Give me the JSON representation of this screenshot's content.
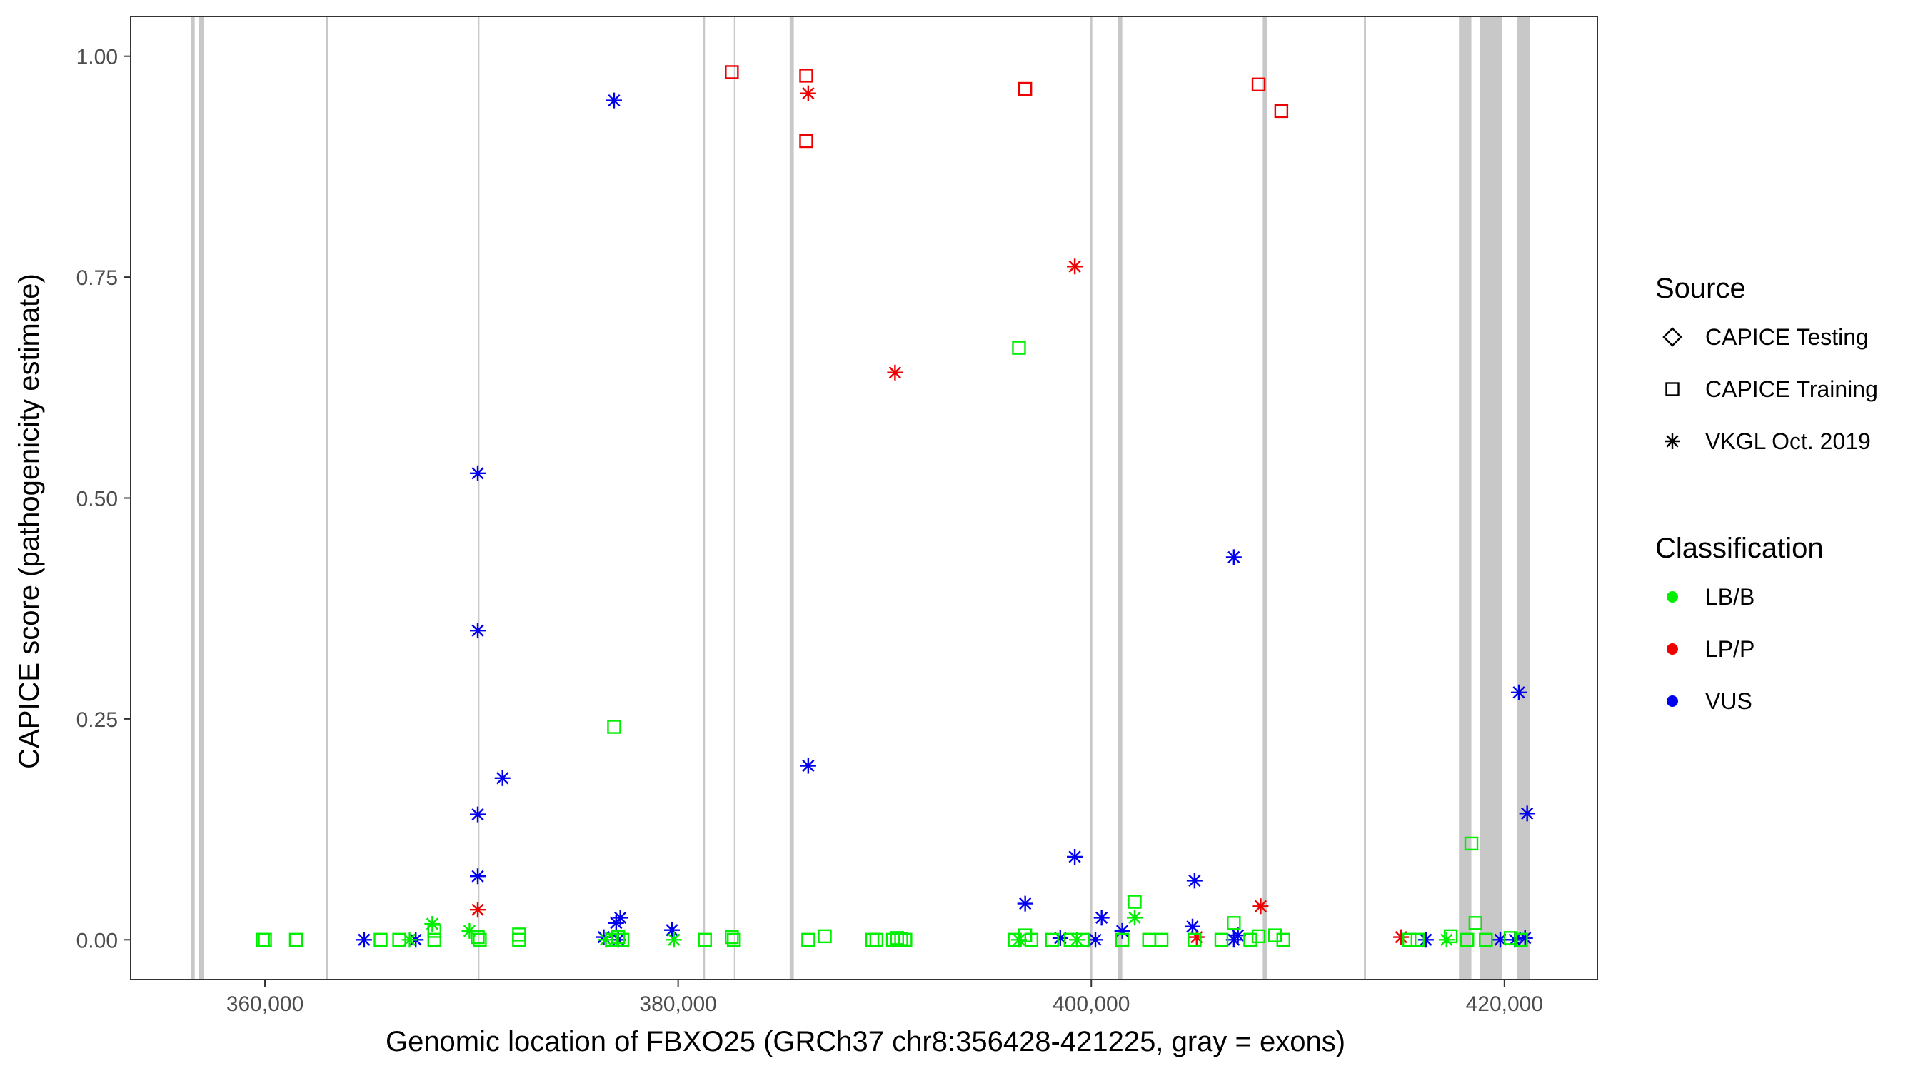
{
  "chart_data": {
    "type": "scatter",
    "xlabel": "Genomic location of FBXO25 (GRCh37 chr8:356428-421225, gray = exons)",
    "ylabel": "CAPICE score (pathogenicity estimate)",
    "xlim": [
      353500,
      424500
    ],
    "ylim": [
      -0.045,
      1.045
    ],
    "x_ticks": [
      360000,
      380000,
      400000,
      420000
    ],
    "x_tick_labels": [
      "360,000",
      "380,000",
      "400,000",
      "420,000"
    ],
    "y_ticks": [
      0,
      0.25,
      0.5,
      0.75,
      1.0
    ],
    "y_tick_labels": [
      "0.00",
      "0.25",
      "0.50",
      "0.75",
      "1.00"
    ],
    "grid": false,
    "exons": [
      [
        356420,
        356600
      ],
      [
        356800,
        357050
      ],
      [
        362950,
        363050
      ],
      [
        370300,
        370380
      ],
      [
        381200,
        381300
      ],
      [
        382700,
        382760
      ],
      [
        385400,
        385600
      ],
      [
        399950,
        400050
      ],
      [
        401300,
        401500
      ],
      [
        408300,
        408500
      ],
      [
        413200,
        413300
      ],
      [
        417800,
        418400
      ],
      [
        418800,
        419900
      ],
      [
        420600,
        421220
      ]
    ],
    "legend_shape": {
      "title": "Source",
      "entries": [
        {
          "label": "CAPICE Testing",
          "shape": "diamond"
        },
        {
          "label": "CAPICE Training",
          "shape": "square"
        },
        {
          "label": "VKGL Oct. 2019",
          "shape": "asterisk"
        }
      ]
    },
    "legend_color": {
      "title": "Classification",
      "entries": [
        {
          "label": "LB/B",
          "color": "#00ee00"
        },
        {
          "label": "LP/P",
          "color": "#ee0000"
        },
        {
          "label": "VUS",
          "color": "#0000ee"
        }
      ]
    },
    "series": [
      {
        "source": "CAPICE Training",
        "classification": "LP/P",
        "points": [
          [
            382600,
            0.982
          ],
          [
            386200,
            0.978
          ],
          [
            386200,
            0.904
          ],
          [
            396800,
            0.963
          ],
          [
            408100,
            0.968
          ],
          [
            409200,
            0.938
          ]
        ]
      },
      {
        "source": "VKGL Oct. 2019",
        "classification": "LP/P",
        "points": [
          [
            386300,
            0.958
          ],
          [
            399200,
            0.762
          ],
          [
            390500,
            0.642
          ],
          [
            370300,
            0.034
          ],
          [
            408200,
            0.038
          ],
          [
            405100,
            0.003
          ],
          [
            415000,
            0.003
          ]
        ]
      },
      {
        "source": "VKGL Oct. 2019",
        "classification": "VUS",
        "points": [
          [
            376900,
            0.95
          ],
          [
            370300,
            0.528
          ],
          [
            370300,
            0.35
          ],
          [
            371500,
            0.183
          ],
          [
            370300,
            0.142
          ],
          [
            370300,
            0.072
          ],
          [
            386300,
            0.197
          ],
          [
            406900,
            0.433
          ],
          [
            399200,
            0.094
          ],
          [
            396800,
            0.041
          ],
          [
            405000,
            0.067
          ],
          [
            404900,
            0.015
          ],
          [
            400500,
            0.025
          ],
          [
            401500,
            0.01
          ],
          [
            420700,
            0.28
          ],
          [
            421100,
            0.143
          ],
          [
            377200,
            0.025
          ],
          [
            377000,
            0.019
          ],
          [
            379700,
            0.011
          ],
          [
            364800,
            0.0
          ],
          [
            367300,
            0.0
          ],
          [
            376400,
            0.003
          ],
          [
            377100,
            0.0
          ],
          [
            398500,
            0.002
          ],
          [
            400200,
            0.0
          ],
          [
            406900,
            0.0
          ],
          [
            407100,
            0.005
          ],
          [
            416200,
            0.0
          ],
          [
            419800,
            0.0
          ],
          [
            420500,
            0.0
          ],
          [
            421000,
            0.002
          ]
        ]
      },
      {
        "source": "VKGL Oct. 2019",
        "classification": "LB/B",
        "points": [
          [
            368100,
            0.018
          ],
          [
            369900,
            0.01
          ],
          [
            367000,
            0.0
          ],
          [
            376500,
            0.0
          ],
          [
            379800,
            0.0
          ],
          [
            396500,
            0.0
          ],
          [
            399300,
            0.0
          ],
          [
            402100,
            0.025
          ],
          [
            417200,
            0.0
          ]
        ]
      },
      {
        "source": "CAPICE Training",
        "classification": "LB/B",
        "points": [
          [
            396500,
            0.67
          ],
          [
            376900,
            0.241
          ],
          [
            418400,
            0.109
          ],
          [
            402100,
            0.043
          ],
          [
            406900,
            0.019
          ],
          [
            418600,
            0.019
          ],
          [
            368200,
            0.01
          ],
          [
            368200,
            0.0
          ],
          [
            359900,
            0.0
          ],
          [
            360000,
            0.0
          ],
          [
            361500,
            0.0
          ],
          [
            365600,
            0.0
          ],
          [
            366500,
            0.0
          ],
          [
            370300,
            0.003
          ],
          [
            370400,
            0.0
          ],
          [
            372300,
            0.006
          ],
          [
            372300,
            0.0
          ],
          [
            376800,
            0.0
          ],
          [
            377100,
            0.003
          ],
          [
            377300,
            0.0
          ],
          [
            381300,
            0.0
          ],
          [
            382600,
            0.003
          ],
          [
            382700,
            0.0
          ],
          [
            386300,
            0.0
          ],
          [
            387100,
            0.004
          ],
          [
            389400,
            0.0
          ],
          [
            389600,
            0.0
          ],
          [
            390400,
            0.0
          ],
          [
            390600,
            0.002
          ],
          [
            390800,
            0.001
          ],
          [
            391000,
            0.0
          ],
          [
            396300,
            0.0
          ],
          [
            396800,
            0.005
          ],
          [
            397100,
            0.0
          ],
          [
            398100,
            0.0
          ],
          [
            399000,
            0.0
          ],
          [
            399600,
            0.0
          ],
          [
            401500,
            0.0
          ],
          [
            402800,
            0.0
          ],
          [
            403400,
            0.0
          ],
          [
            405000,
            0.0
          ],
          [
            406300,
            0.0
          ],
          [
            407700,
            0.0
          ],
          [
            408100,
            0.004
          ],
          [
            408900,
            0.005
          ],
          [
            409300,
            0.0
          ],
          [
            415400,
            0.0
          ],
          [
            415800,
            0.0
          ],
          [
            417400,
            0.004
          ],
          [
            418200,
            0.0
          ],
          [
            419100,
            0.0
          ],
          [
            420300,
            0.002
          ],
          [
            420800,
            0.0
          ]
        ]
      }
    ]
  }
}
